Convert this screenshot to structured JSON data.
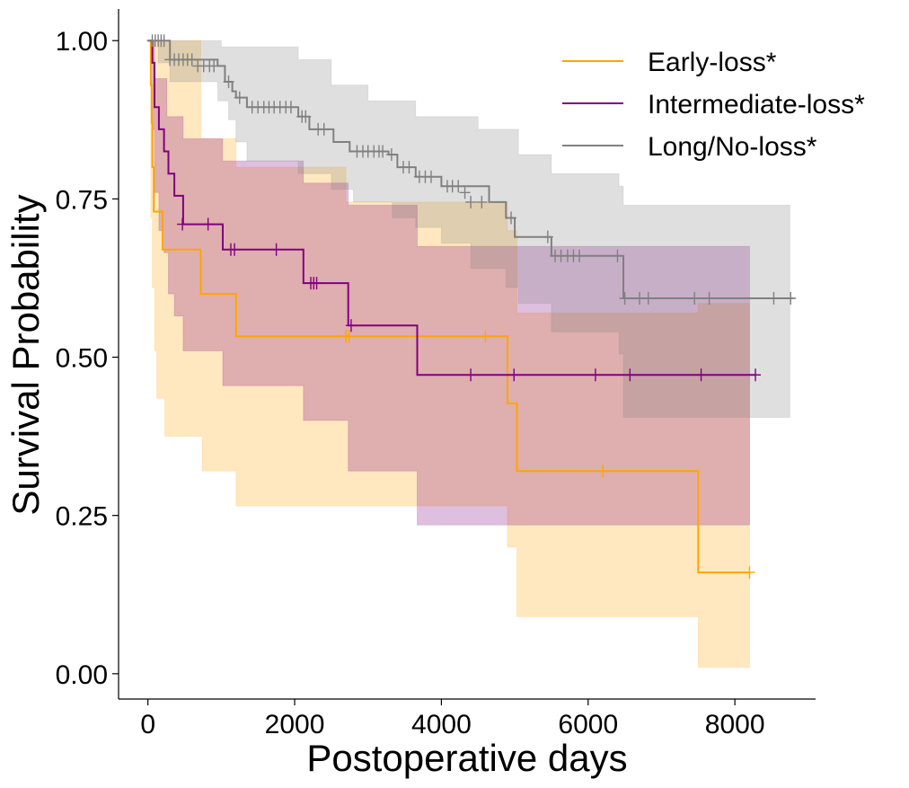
{
  "chart_data": {
    "type": "line",
    "xlabel": "Postoperative days",
    "ylabel": "Survival Probability",
    "xlim": [
      -400,
      9100
    ],
    "ylim": [
      -0.04,
      1.05
    ],
    "xticks": [
      0,
      2000,
      4000,
      6000,
      8000
    ],
    "yticks": [
      0.0,
      0.25,
      0.5,
      0.75,
      1.0
    ],
    "xtick_labels": [
      "0",
      "2000",
      "4000",
      "6000",
      "8000"
    ],
    "ytick_labels": [
      "0.00",
      "0.25",
      "0.50",
      "0.75",
      "1.00"
    ],
    "grid": false,
    "legend_position": "top-right",
    "series": [
      {
        "name": "Early-loss*",
        "color": "#ffa500",
        "ci_opacity": 0.25,
        "steps": [
          [
            0,
            1.0
          ],
          [
            40,
            0.93
          ],
          [
            50,
            0.87
          ],
          [
            60,
            0.8
          ],
          [
            80,
            0.73
          ],
          [
            200,
            0.67
          ],
          [
            720,
            0.6
          ],
          [
            1200,
            0.533
          ],
          [
            4900,
            0.427
          ],
          [
            5030,
            0.32
          ],
          [
            7500,
            0.16
          ],
          [
            8200,
            0.16
          ]
        ],
        "ci_upper": [
          [
            0,
            1.0
          ],
          [
            40,
            1.0
          ],
          [
            720,
            0.845
          ],
          [
            1200,
            0.8
          ],
          [
            2700,
            0.745
          ],
          [
            4900,
            0.7
          ],
          [
            5030,
            0.57
          ],
          [
            7500,
            0.585
          ],
          [
            8200,
            0.585
          ]
        ],
        "ci_lower": [
          [
            0,
            1.0
          ],
          [
            40,
            0.72
          ],
          [
            60,
            0.61
          ],
          [
            90,
            0.51
          ],
          [
            120,
            0.435
          ],
          [
            230,
            0.375
          ],
          [
            740,
            0.32
          ],
          [
            1200,
            0.265
          ],
          [
            4900,
            0.2
          ],
          [
            5030,
            0.09
          ],
          [
            7500,
            0.01
          ],
          [
            8200,
            0.01
          ]
        ],
        "censored": [
          [
            2700,
            0.533
          ],
          [
            2740,
            0.533
          ],
          [
            4600,
            0.533
          ],
          [
            6200,
            0.32
          ],
          [
            8200,
            0.16
          ]
        ]
      },
      {
        "name": "Intermediate-loss*",
        "color": "#800080",
        "ci_opacity": 0.25,
        "steps": [
          [
            0,
            1.0
          ],
          [
            60,
            0.965
          ],
          [
            90,
            0.895
          ],
          [
            150,
            0.86
          ],
          [
            220,
            0.825
          ],
          [
            280,
            0.79
          ],
          [
            360,
            0.755
          ],
          [
            480,
            0.71
          ],
          [
            1020,
            0.67
          ],
          [
            2120,
            0.617
          ],
          [
            2730,
            0.55
          ],
          [
            3670,
            0.472
          ],
          [
            8280,
            0.472
          ]
        ],
        "ci_upper": [
          [
            0,
            1.0
          ],
          [
            60,
            1.0
          ],
          [
            90,
            0.94
          ],
          [
            260,
            0.88
          ],
          [
            480,
            0.845
          ],
          [
            1020,
            0.81
          ],
          [
            2120,
            0.775
          ],
          [
            2730,
            0.74
          ],
          [
            3670,
            0.675
          ],
          [
            8200,
            0.675
          ]
        ],
        "ci_lower": [
          [
            0,
            1.0
          ],
          [
            60,
            0.86
          ],
          [
            90,
            0.76
          ],
          [
            150,
            0.7
          ],
          [
            220,
            0.665
          ],
          [
            280,
            0.6
          ],
          [
            360,
            0.565
          ],
          [
            480,
            0.51
          ],
          [
            1020,
            0.455
          ],
          [
            2120,
            0.4
          ],
          [
            2730,
            0.32
          ],
          [
            3670,
            0.235
          ],
          [
            8200,
            0.235
          ]
        ],
        "censored": [
          [
            470,
            0.71
          ],
          [
            820,
            0.71
          ],
          [
            1130,
            0.67
          ],
          [
            1180,
            0.67
          ],
          [
            1750,
            0.67
          ],
          [
            2220,
            0.617
          ],
          [
            2260,
            0.617
          ],
          [
            2300,
            0.617
          ],
          [
            2770,
            0.55
          ],
          [
            4400,
            0.472
          ],
          [
            4990,
            0.472
          ],
          [
            6100,
            0.472
          ],
          [
            6570,
            0.472
          ],
          [
            7540,
            0.472
          ],
          [
            8280,
            0.472
          ]
        ]
      },
      {
        "name": "Long/No-loss*",
        "color": "#808080",
        "ci_opacity": 0.25,
        "steps": [
          [
            0,
            1.0
          ],
          [
            300,
            0.97
          ],
          [
            950,
            0.96
          ],
          [
            1050,
            0.935
          ],
          [
            1150,
            0.92
          ],
          [
            1200,
            0.91
          ],
          [
            1350,
            0.895
          ],
          [
            2050,
            0.88
          ],
          [
            2200,
            0.86
          ],
          [
            2530,
            0.84
          ],
          [
            2750,
            0.825
          ],
          [
            3280,
            0.82
          ],
          [
            3400,
            0.8
          ],
          [
            3650,
            0.785
          ],
          [
            4000,
            0.77
          ],
          [
            4650,
            0.745
          ],
          [
            4880,
            0.72
          ],
          [
            5000,
            0.69
          ],
          [
            5500,
            0.66
          ],
          [
            5990,
            0.66
          ],
          [
            6420,
            0.66
          ],
          [
            6480,
            0.593
          ],
          [
            8800,
            0.593
          ]
        ],
        "ci_upper": [
          [
            0,
            1.0
          ],
          [
            300,
            1.0
          ],
          [
            1000,
            0.99
          ],
          [
            2050,
            0.97
          ],
          [
            2500,
            0.93
          ],
          [
            3000,
            0.905
          ],
          [
            3650,
            0.88
          ],
          [
            4500,
            0.86
          ],
          [
            5050,
            0.82
          ],
          [
            5500,
            0.79
          ],
          [
            6420,
            0.77
          ],
          [
            6480,
            0.74
          ],
          [
            8750,
            0.74
          ]
        ],
        "ci_lower": [
          [
            0,
            1.0
          ],
          [
            140,
            0.965
          ],
          [
            300,
            0.935
          ],
          [
            950,
            0.905
          ],
          [
            1100,
            0.875
          ],
          [
            1200,
            0.84
          ],
          [
            1350,
            0.81
          ],
          [
            2050,
            0.79
          ],
          [
            2500,
            0.765
          ],
          [
            2800,
            0.745
          ],
          [
            3330,
            0.72
          ],
          [
            3650,
            0.705
          ],
          [
            4000,
            0.68
          ],
          [
            4400,
            0.64
          ],
          [
            4880,
            0.61
          ],
          [
            5050,
            0.585
          ],
          [
            5500,
            0.54
          ],
          [
            6420,
            0.505
          ],
          [
            6480,
            0.405
          ],
          [
            8750,
            0.405
          ]
        ],
        "censored": [
          [
            60,
            1.0
          ],
          [
            100,
            1.0
          ],
          [
            140,
            1.0
          ],
          [
            180,
            1.0
          ],
          [
            220,
            1.0
          ],
          [
            300,
            0.97
          ],
          [
            360,
            0.97
          ],
          [
            420,
            0.97
          ],
          [
            480,
            0.97
          ],
          [
            540,
            0.97
          ],
          [
            600,
            0.97
          ],
          [
            680,
            0.96
          ],
          [
            760,
            0.96
          ],
          [
            840,
            0.96
          ],
          [
            900,
            0.96
          ],
          [
            1100,
            0.935
          ],
          [
            1250,
            0.91
          ],
          [
            1420,
            0.895
          ],
          [
            1500,
            0.895
          ],
          [
            1580,
            0.895
          ],
          [
            1650,
            0.895
          ],
          [
            1720,
            0.895
          ],
          [
            1800,
            0.895
          ],
          [
            1880,
            0.895
          ],
          [
            1950,
            0.895
          ],
          [
            2100,
            0.88
          ],
          [
            2150,
            0.88
          ],
          [
            2320,
            0.86
          ],
          [
            2400,
            0.86
          ],
          [
            2850,
            0.825
          ],
          [
            2930,
            0.825
          ],
          [
            3000,
            0.825
          ],
          [
            3080,
            0.825
          ],
          [
            3150,
            0.825
          ],
          [
            3200,
            0.825
          ],
          [
            3320,
            0.82
          ],
          [
            3480,
            0.8
          ],
          [
            3560,
            0.8
          ],
          [
            3700,
            0.785
          ],
          [
            3780,
            0.785
          ],
          [
            3860,
            0.785
          ],
          [
            4080,
            0.77
          ],
          [
            4150,
            0.77
          ],
          [
            4230,
            0.77
          ],
          [
            4320,
            0.76
          ],
          [
            4400,
            0.745
          ],
          [
            4550,
            0.745
          ],
          [
            4950,
            0.72
          ],
          [
            5450,
            0.69
          ],
          [
            5550,
            0.66
          ],
          [
            5630,
            0.66
          ],
          [
            5720,
            0.66
          ],
          [
            5800,
            0.66
          ],
          [
            5880,
            0.66
          ],
          [
            6400,
            0.66
          ],
          [
            6500,
            0.593
          ],
          [
            6700,
            0.593
          ],
          [
            6820,
            0.593
          ],
          [
            7450,
            0.593
          ],
          [
            7650,
            0.593
          ],
          [
            8530,
            0.593
          ],
          [
            8760,
            0.593
          ]
        ]
      }
    ]
  }
}
